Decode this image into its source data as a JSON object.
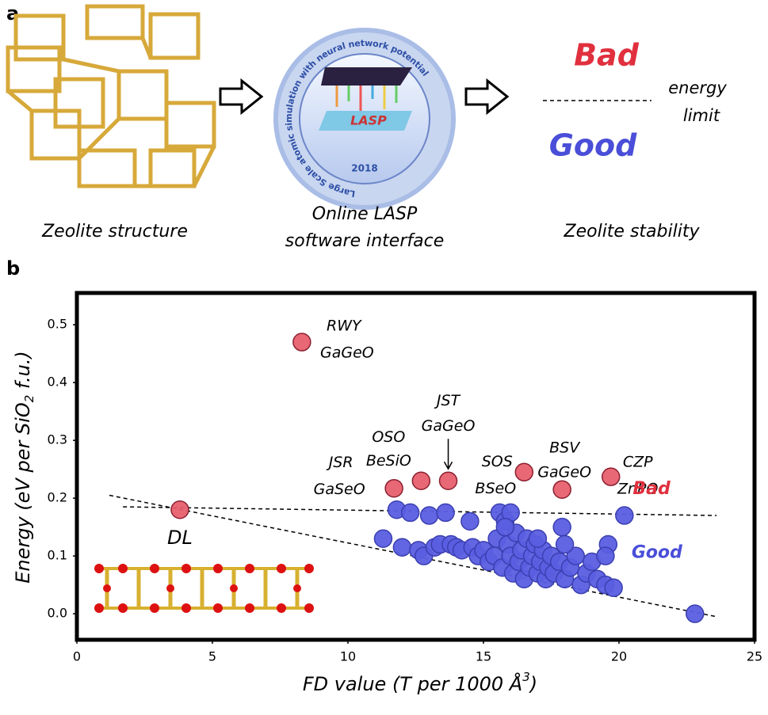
{
  "panel_a": {
    "label": "a",
    "structure_caption": "Zeolite structure",
    "software_caption": [
      "Online LASP",
      "software interface"
    ],
    "stability_caption": "Zeolite stability",
    "logo_ring_text": "Large Scale atomic simulation with neural network potential",
    "logo_year": "2018",
    "logo_name": "LASP",
    "bad": "Bad",
    "good": "Good",
    "limit_text": [
      "energy",
      "limit"
    ]
  },
  "chart_data": {
    "type": "scatter",
    "panel_label": "b",
    "x_label": [
      "FD value (T per 1000 Å",
      "3",
      ")"
    ],
    "y_label": [
      "Energy (eV per SiO",
      "2",
      " f.u.)"
    ],
    "xlim": [
      0,
      25
    ],
    "ylim": [
      -0.045,
      0.555
    ],
    "xticks": [
      0,
      5,
      10,
      15,
      20,
      25
    ],
    "yticks": [
      {
        "value": 0,
        "label": "0.0"
      },
      0.1,
      0.2,
      0.3,
      0.4,
      0.5
    ],
    "series": [
      {
        "name": "Bad",
        "color": "#e8606e",
        "x": [
          8.3,
          3.8,
          11.7,
          12.7,
          13.7,
          16.5,
          17.9,
          19.7
        ],
        "values": [
          0.47,
          0.18,
          0.217,
          0.23,
          0.23,
          0.245,
          0.215,
          0.237
        ],
        "point_labels": [
          [
            "RWY",
            "GaGeO"
          ],
          [
            "DL"
          ],
          [
            "JSR",
            "GaSeO"
          ],
          [
            "OSO",
            "BeSiO"
          ],
          [
            "JST",
            "GaGeO"
          ],
          [
            "SOS",
            "BSeO"
          ],
          [
            "BSV",
            "GaGeO"
          ],
          [
            "CZP",
            "ZnPO"
          ]
        ]
      },
      {
        "name": "Good",
        "color": "#5a5ee0",
        "x": [
          11.3,
          11.8,
          12.0,
          12.3,
          12.6,
          12.8,
          13.0,
          13.2,
          13.4,
          13.6,
          13.8,
          14.0,
          14.2,
          14.5,
          14.6,
          14.8,
          15.0,
          15.2,
          15.4,
          15.5,
          15.6,
          15.7,
          15.8,
          15.9,
          16.0,
          16.1,
          16.2,
          16.3,
          16.4,
          16.5,
          16.6,
          16.7,
          16.8,
          16.9,
          17.0,
          17.1,
          17.2,
          17.3,
          17.4,
          17.5,
          17.6,
          17.8,
          17.9,
          18.0,
          18.2,
          18.4,
          18.6,
          18.8,
          19.0,
          19.2,
          19.5,
          19.6,
          19.8,
          20.2,
          22.8,
          16.0,
          15.8,
          17.0,
          18.0,
          19.5
        ],
        "values": [
          0.13,
          0.18,
          0.115,
          0.175,
          0.11,
          0.1,
          0.17,
          0.115,
          0.12,
          0.175,
          0.12,
          0.115,
          0.11,
          0.16,
          0.115,
          0.1,
          0.11,
          0.09,
          0.1,
          0.13,
          0.175,
          0.08,
          0.16,
          0.12,
          0.1,
          0.07,
          0.14,
          0.09,
          0.11,
          0.06,
          0.13,
          0.08,
          0.1,
          0.12,
          0.07,
          0.09,
          0.11,
          0.06,
          0.08,
          0.1,
          0.07,
          0.09,
          0.15,
          0.06,
          0.08,
          0.1,
          0.05,
          0.07,
          0.09,
          0.06,
          0.05,
          0.12,
          0.045,
          0.17,
          0.0,
          0.175,
          0.15,
          0.13,
          0.12,
          0.1
        ]
      }
    ],
    "lines": [
      {
        "x": [
          1.2,
          23.6
        ],
        "values": [
          0.205,
          -0.005
        ]
      },
      {
        "x": [
          1.7,
          23.6
        ],
        "values": [
          0.185,
          0.17
        ]
      }
    ],
    "annotations": [
      {
        "text": "Bad",
        "x": 21.2,
        "y": 0.215,
        "color": "#e0303e"
      },
      {
        "text": "Good",
        "x": 21.4,
        "y": 0.105,
        "color": "#4a4ed8"
      }
    ]
  }
}
